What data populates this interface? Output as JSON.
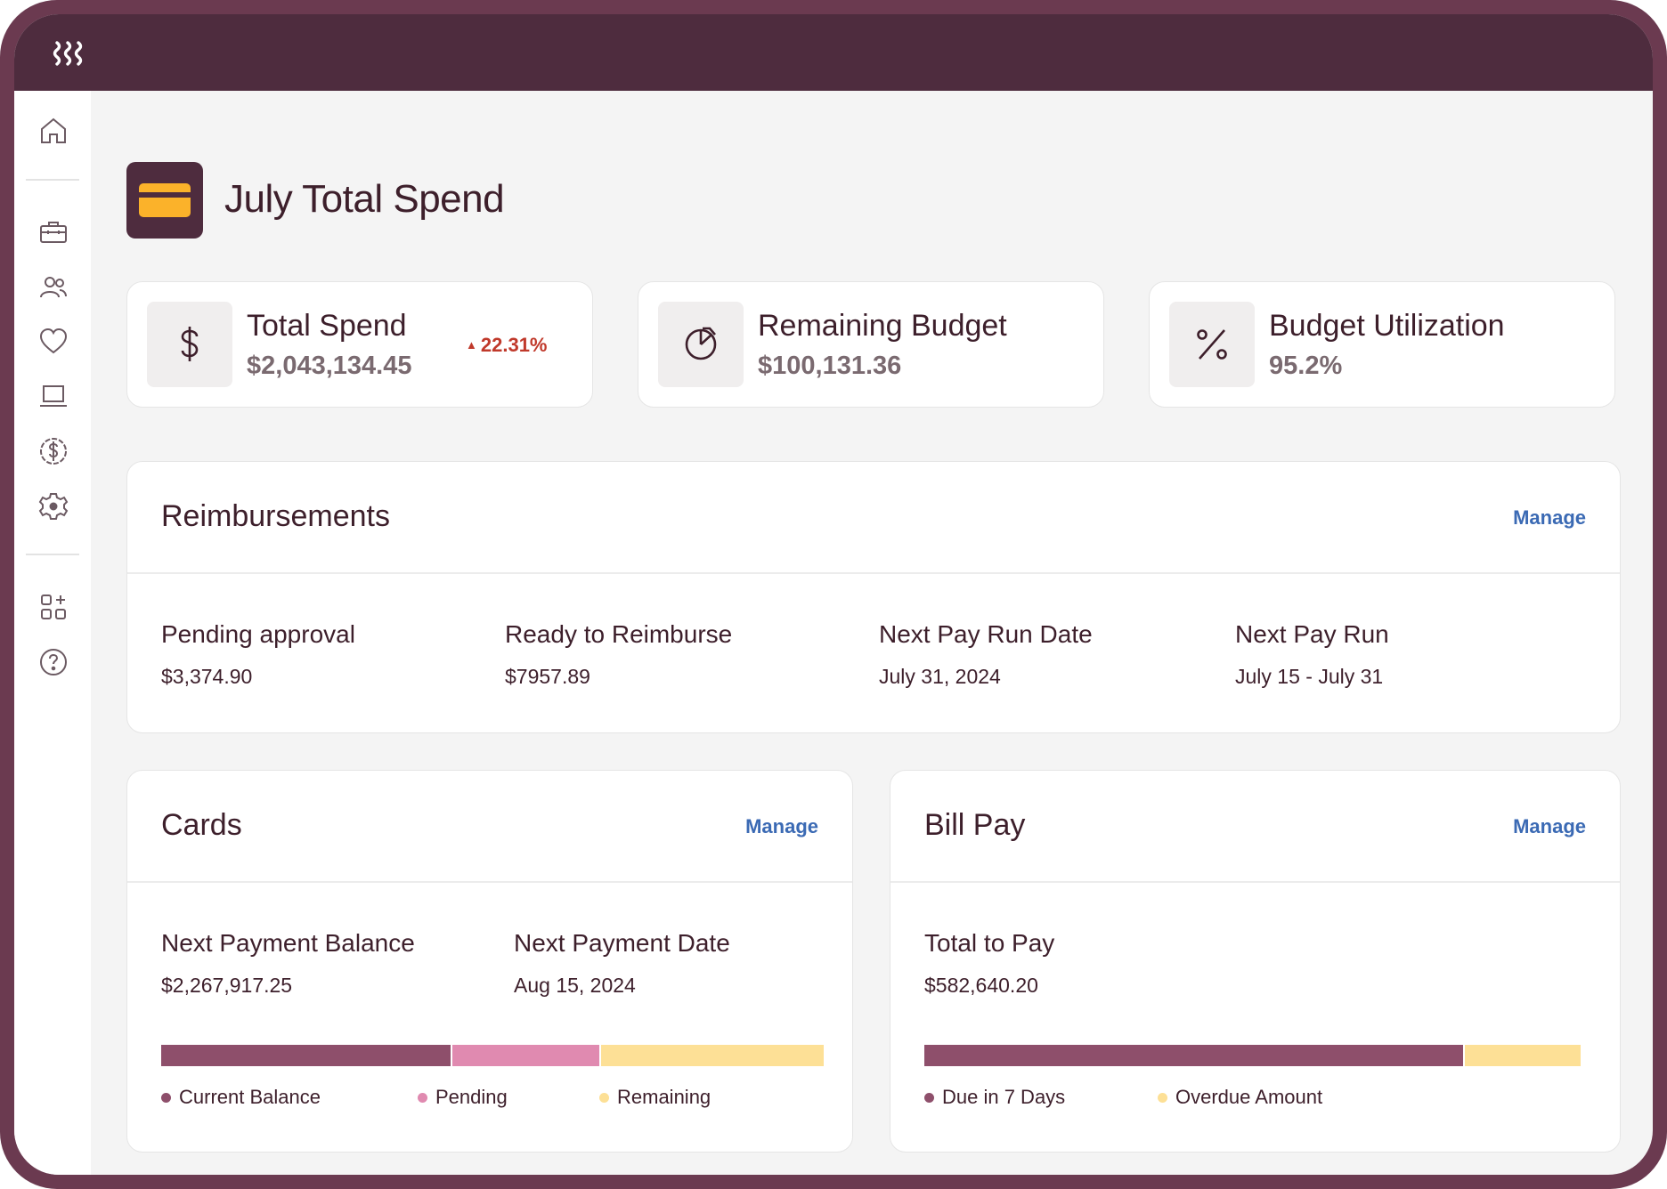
{
  "nav": {
    "icons": [
      "home-icon",
      "briefcase-icon",
      "people-icon",
      "heart-icon",
      "laptop-icon",
      "dollar-circle-icon",
      "gear-icon",
      "apps-add-icon",
      "help-icon"
    ]
  },
  "page": {
    "title": "July Total Spend",
    "icon": "credit-card-icon"
  },
  "stats": [
    {
      "label": "Total Spend",
      "value": "$2,043,134.45",
      "trend": "22.31%",
      "trend_direction": "up",
      "icon": "dollar-icon"
    },
    {
      "label": "Remaining Budget",
      "value": "$100,131.36",
      "icon": "pie-chart-icon"
    },
    {
      "label": "Budget Utilization",
      "value": "95.2%",
      "icon": "percent-icon"
    }
  ],
  "reimbursements": {
    "title": "Reimbursements",
    "manage": "Manage",
    "metrics": [
      {
        "label": "Pending approval",
        "value": "$3,374.90"
      },
      {
        "label": "Ready to Reimburse",
        "value": "$7957.89"
      },
      {
        "label": "Next Pay Run Date",
        "value": "July 31, 2024"
      },
      {
        "label": "Next Pay Run",
        "value": "July 15 - July 31"
      }
    ]
  },
  "cards": {
    "title": "Cards",
    "manage": "Manage",
    "metrics": [
      {
        "label": "Next Payment Balance",
        "value": "$2,267,917.25"
      },
      {
        "label": "Next Payment Date",
        "value": "Aug 15, 2024"
      }
    ],
    "bar": [
      {
        "name": "Current Balance",
        "fraction": 0.44,
        "color": "#8e4f6b"
      },
      {
        "name": "Pending",
        "fraction": 0.225,
        "color": "#e08ab0"
      },
      {
        "name": "Remaining",
        "fraction": 0.335,
        "color": "#fde096"
      }
    ]
  },
  "billpay": {
    "title": "Bill Pay",
    "manage": "Manage",
    "metrics": [
      {
        "label": "Total to Pay",
        "value": "$582,640.20"
      }
    ],
    "bar": [
      {
        "name": "Due in 7 Days",
        "fraction": 0.824,
        "color": "#8e4f6b"
      },
      {
        "name": "Overdue Amount",
        "fraction": 0.176,
        "color": "#fde096"
      }
    ]
  }
}
